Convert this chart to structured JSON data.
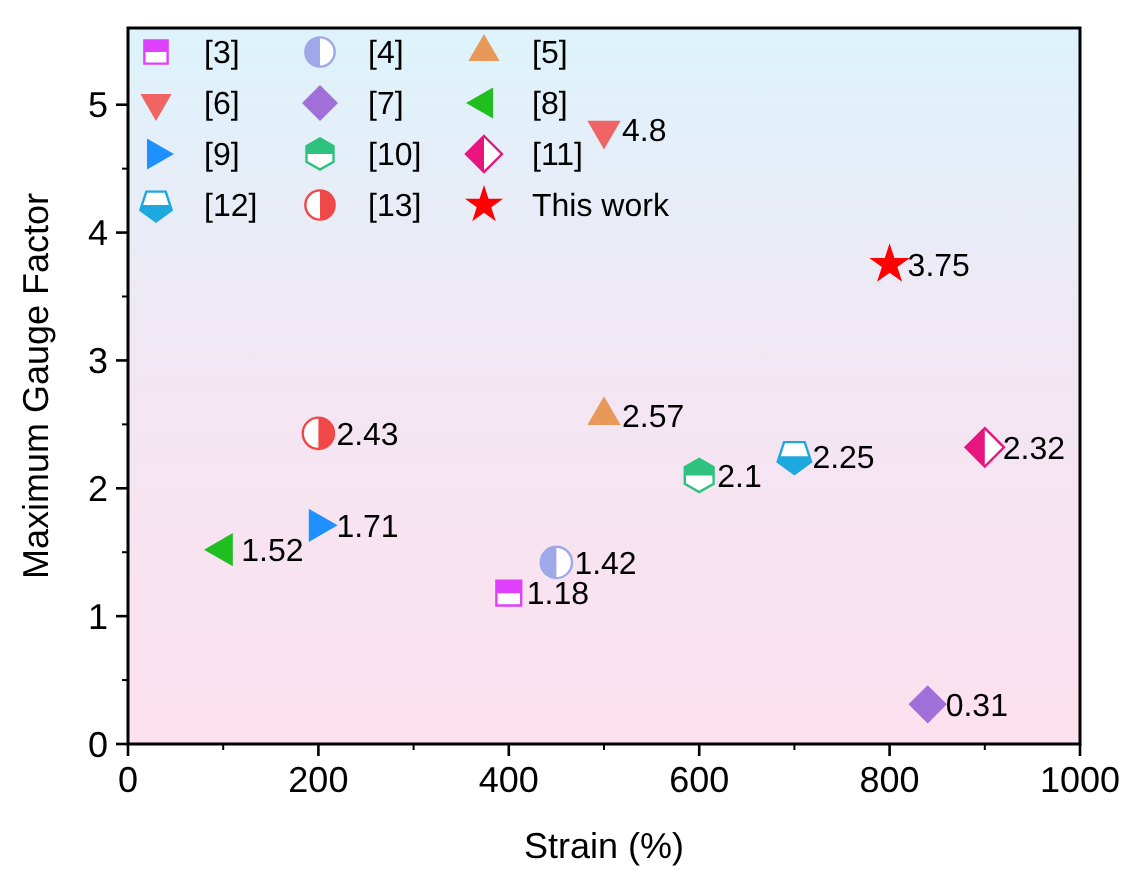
{
  "chart_data": {
    "type": "scatter",
    "xlabel": "Strain (%)",
    "ylabel": "Maximum Gauge Factor",
    "xlim": [
      0,
      1000
    ],
    "xticks": [
      0,
      200,
      400,
      600,
      800,
      1000
    ],
    "ylim": [
      0,
      5.6
    ],
    "yticks": [
      0,
      1,
      2,
      3,
      4,
      5
    ],
    "grid": false,
    "legend": "top left",
    "data_labels": true,
    "series": [
      {
        "name": "[3]",
        "color": "#e040fb",
        "marker": "square",
        "x": [
          400
        ],
        "values": [
          1.18
        ]
      },
      {
        "name": "[4]",
        "color": "#9fa8e8",
        "marker": "circle",
        "x": [
          450
        ],
        "values": [
          1.42
        ]
      },
      {
        "name": "[5]",
        "color": "#e8995a",
        "marker": "triangle",
        "x": [
          500
        ],
        "values": [
          2.57
        ]
      },
      {
        "name": "[6]",
        "color": "#f06464",
        "marker": "triangle-down",
        "x": [
          500
        ],
        "values": [
          4.8
        ]
      },
      {
        "name": "[7]",
        "color": "#a070d8",
        "marker": "diamond",
        "x": [
          840
        ],
        "values": [
          0.31
        ]
      },
      {
        "name": "[8]",
        "color": "#1fbf1f",
        "marker": "triangle-left",
        "x": [
          100
        ],
        "values": [
          1.52
        ]
      },
      {
        "name": "[9]",
        "color": "#1e90ff",
        "marker": "triangle-right",
        "x": [
          200
        ],
        "values": [
          1.71
        ]
      },
      {
        "name": "[10]",
        "color": "#2ec27e",
        "x": [
          600
        ],
        "values": [
          2.1
        ]
      },
      {
        "name": "[11]",
        "color": "#e8157f",
        "marker": "diamond",
        "x": [
          900
        ],
        "values": [
          2.32
        ]
      },
      {
        "name": "[12]",
        "color": "#1ea8e0",
        "x": [
          700
        ],
        "values": [
          2.25
        ]
      },
      {
        "name": "[13]",
        "color": "#f04848",
        "marker": "circle",
        "x": [
          200
        ],
        "values": [
          2.43
        ]
      },
      {
        "name": "This work",
        "color": "#ff0000",
        "marker": "star",
        "x": [
          800
        ],
        "values": [
          3.75
        ]
      }
    ]
  }
}
